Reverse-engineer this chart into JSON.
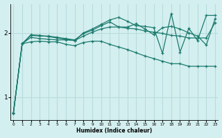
{
  "xlabel": "Humidex (Indice chaleur)",
  "bg_color": "#d4efef",
  "grid_color": "#b8dcdc",
  "line_color": "#1a7a6e",
  "x_ticks": [
    0,
    1,
    2,
    3,
    4,
    5,
    6,
    7,
    8,
    9,
    10,
    11,
    12,
    13,
    14,
    15,
    16,
    17,
    18,
    19,
    20,
    21,
    22,
    23
  ],
  "y_ticks": [
    1,
    2
  ],
  "xlim": [
    -0.3,
    23.3
  ],
  "ylim": [
    0.65,
    2.45
  ],
  "series": [
    [
      0.75,
      1.83,
      1.93,
      1.91,
      1.9,
      1.89,
      1.89,
      1.88,
      1.95,
      2.01,
      2.06,
      2.09,
      2.09,
      2.07,
      2.06,
      2.03,
      2.01,
      1.99,
      1.96,
      1.95,
      1.92,
      1.92,
      1.92,
      2.16
    ],
    [
      0.75,
      1.83,
      1.96,
      1.95,
      1.95,
      1.93,
      1.91,
      1.89,
      1.99,
      2.04,
      2.11,
      2.17,
      2.09,
      2.09,
      2.14,
      2.06,
      1.97,
      2.08,
      2.1,
      2.06,
      2.0,
      1.95,
      1.81,
      2.22
    ],
    [
      0.75,
      1.83,
      1.97,
      1.96,
      1.94,
      1.92,
      1.9,
      1.88,
      2.0,
      2.06,
      2.13,
      2.2,
      2.24,
      2.18,
      2.11,
      2.1,
      2.08,
      1.68,
      2.3,
      1.7,
      2.07,
      1.88,
      2.27,
      2.27
    ],
    [
      0.75,
      1.83,
      1.86,
      1.87,
      1.86,
      1.86,
      1.82,
      1.8,
      1.85,
      1.87,
      1.87,
      1.82,
      1.78,
      1.74,
      1.69,
      1.64,
      1.6,
      1.56,
      1.52,
      1.52,
      1.48,
      1.48,
      1.48,
      1.48
    ]
  ]
}
